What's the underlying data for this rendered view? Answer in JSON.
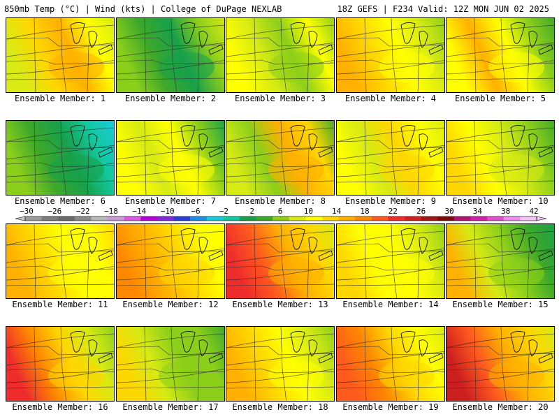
{
  "header": {
    "left": "850mb Temp (°C) | Wind (kts) | College of DuPage NEXLAB",
    "right": "18Z GEFS | F234 Valid: 12Z MON JUN 02 2025"
  },
  "colorbar": {
    "labels": [
      "-30",
      "-26",
      "-22",
      "-18",
      "-14",
      "-10",
      "-6",
      "-2",
      "2",
      "6",
      "10",
      "14",
      "18",
      "22",
      "26",
      "30",
      "34",
      "38",
      "42"
    ],
    "colors": [
      "#9b9b9b",
      "#7c7c7c",
      "#6a6a6a",
      "#8a8a8a",
      "#b8b8b8",
      "#c89ad8",
      "#d95ce0",
      "#b300d9",
      "#7d2ad6",
      "#2b3bd6",
      "#1d8ee0",
      "#19c9dc",
      "#12c9a0",
      "#18a04a",
      "#3ea82a",
      "#8ccf1a",
      "#d6ea14",
      "#ffff00",
      "#ffd700",
      "#ffb000",
      "#ff8800",
      "#ff5a1e",
      "#ee2c2c",
      "#cc1f1f",
      "#a01414",
      "#7a0a0a",
      "#b0146e",
      "#d21fa8",
      "#e14fd0",
      "#ee8cf0",
      "#f5c2f5"
    ]
  },
  "panels": [
    {
      "label": "Ensemble Member: 1",
      "colors": [
        "#d9ea14",
        "#ffd700",
        "#ffb000",
        "#ffff00",
        "#d6ea14"
      ]
    },
    {
      "label": "Ensemble Member: 2",
      "colors": [
        "#8ccf1a",
        "#3ea82a",
        "#18a04a",
        "#8ccf1a",
        "#d6ea14"
      ]
    },
    {
      "label": "Ensemble Member: 3",
      "colors": [
        "#ffff00",
        "#d6ea14",
        "#8ccf1a",
        "#ffff00",
        "#8ccf1a"
      ]
    },
    {
      "label": "Ensemble Member: 4",
      "colors": [
        "#ffb000",
        "#ffd700",
        "#ffff00",
        "#d6ea14",
        "#8ccf1a"
      ]
    },
    {
      "label": "Ensemble Member: 5",
      "colors": [
        "#ffff00",
        "#ffb000",
        "#ffff00",
        "#8ccf1a",
        "#3ea82a"
      ]
    },
    {
      "label": "Ensemble Member: 6",
      "colors": [
        "#8ccf1a",
        "#3ea82a",
        "#18a04a",
        "#12c9a0",
        "#19c9dc"
      ]
    },
    {
      "label": "Ensemble Member: 7",
      "colors": [
        "#ffff00",
        "#d6ea14",
        "#ffff00",
        "#8ccf1a",
        "#18a04a"
      ]
    },
    {
      "label": "Ensemble Member: 8",
      "colors": [
        "#d6ea14",
        "#8ccf1a",
        "#ffb000",
        "#ffd700",
        "#3ea82a"
      ]
    },
    {
      "label": "Ensemble Member: 9",
      "colors": [
        "#ffff00",
        "#d6ea14",
        "#ffd700",
        "#ffff00",
        "#d6ea14"
      ]
    },
    {
      "label": "Ensemble Member: 10",
      "colors": [
        "#ffd700",
        "#ffff00",
        "#d6ea14",
        "#8ccf1a",
        "#3ea82a"
      ]
    },
    {
      "label": "Ensemble Member: 11",
      "colors": [
        "#ffb000",
        "#ffd700",
        "#ffff00",
        "#ffff00",
        "#ffd700"
      ]
    },
    {
      "label": "Ensemble Member: 12",
      "colors": [
        "#ff8800",
        "#ffb000",
        "#ffd700",
        "#ffff00",
        "#ffff00"
      ]
    },
    {
      "label": "Ensemble Member: 13",
      "colors": [
        "#ee2c2c",
        "#ff5a1e",
        "#ffb000",
        "#ffd700",
        "#d6ea14"
      ]
    },
    {
      "label": "Ensemble Member: 14",
      "colors": [
        "#ffd700",
        "#ffff00",
        "#ffff00",
        "#d6ea14",
        "#8ccf1a"
      ]
    },
    {
      "label": "Ensemble Member: 15",
      "colors": [
        "#ffb000",
        "#d6ea14",
        "#8ccf1a",
        "#3ea82a",
        "#18a04a"
      ]
    },
    {
      "label": "Ensemble Member: 16",
      "colors": [
        "#ee2c2c",
        "#ff8800",
        "#ffd700",
        "#d6ea14",
        "#8ccf1a"
      ]
    },
    {
      "label": "Ensemble Member: 17",
      "colors": [
        "#ffd700",
        "#d6ea14",
        "#8ccf1a",
        "#8ccf1a",
        "#3ea82a"
      ]
    },
    {
      "label": "Ensemble Member: 18",
      "colors": [
        "#ffb000",
        "#ffd700",
        "#ffff00",
        "#d6ea14",
        "#8ccf1a"
      ]
    },
    {
      "label": "Ensemble Member: 19",
      "colors": [
        "#ff5a1e",
        "#ff8800",
        "#ffd700",
        "#ffff00",
        "#d6ea14"
      ]
    },
    {
      "label": "Ensemble Member: 20",
      "colors": [
        "#cc1f1f",
        "#ff5a1e",
        "#ffb000",
        "#ffd700",
        "#d6ea14"
      ]
    }
  ]
}
